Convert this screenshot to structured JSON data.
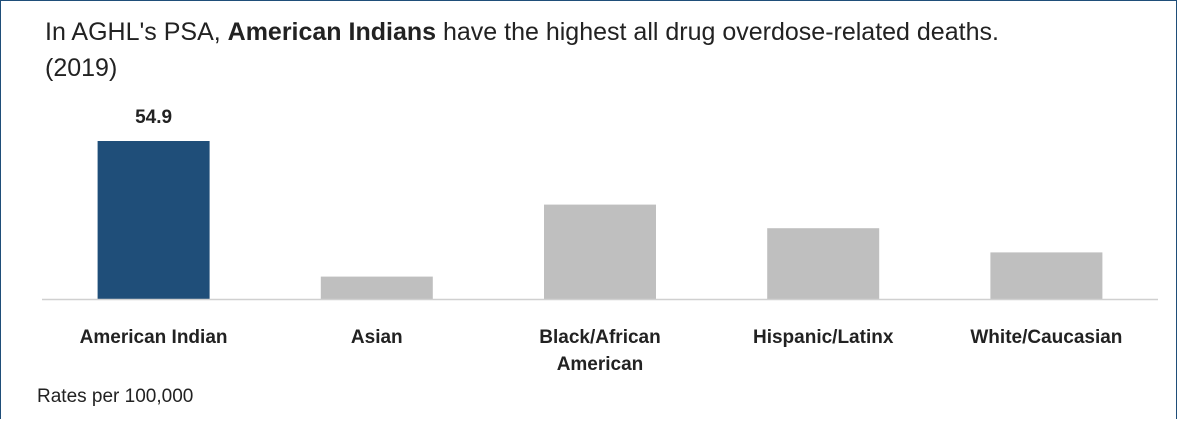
{
  "title": {
    "prefix": "In AGHL's PSA, ",
    "bold": "American Indians",
    "suffix": " have the highest all drug overdose-related deaths. (2019)"
  },
  "footnote": "Rates per 100,000",
  "colors": {
    "highlight": "#1f4e79",
    "other": "#bfbfbf",
    "axis": "#d0d0d0",
    "frame": "#1f4e79"
  },
  "chart_data": {
    "type": "bar",
    "categories": [
      "American Indian",
      "Asian",
      "Black/African American",
      "Hispanic/Latinx",
      "White/Caucasian"
    ],
    "category_lines": [
      [
        "American Indian"
      ],
      [
        "Asian"
      ],
      [
        "Black/African",
        "American"
      ],
      [
        "Hispanic/Latinx"
      ],
      [
        "White/Caucasian"
      ]
    ],
    "values": [
      54.9,
      7.8,
      32.8,
      24.6,
      16.2
    ],
    "data_labels": [
      "54.9",
      "",
      "",
      "",
      ""
    ],
    "highlight_index": 0,
    "ylim": [
      0,
      54.9
    ],
    "grid": false
  }
}
